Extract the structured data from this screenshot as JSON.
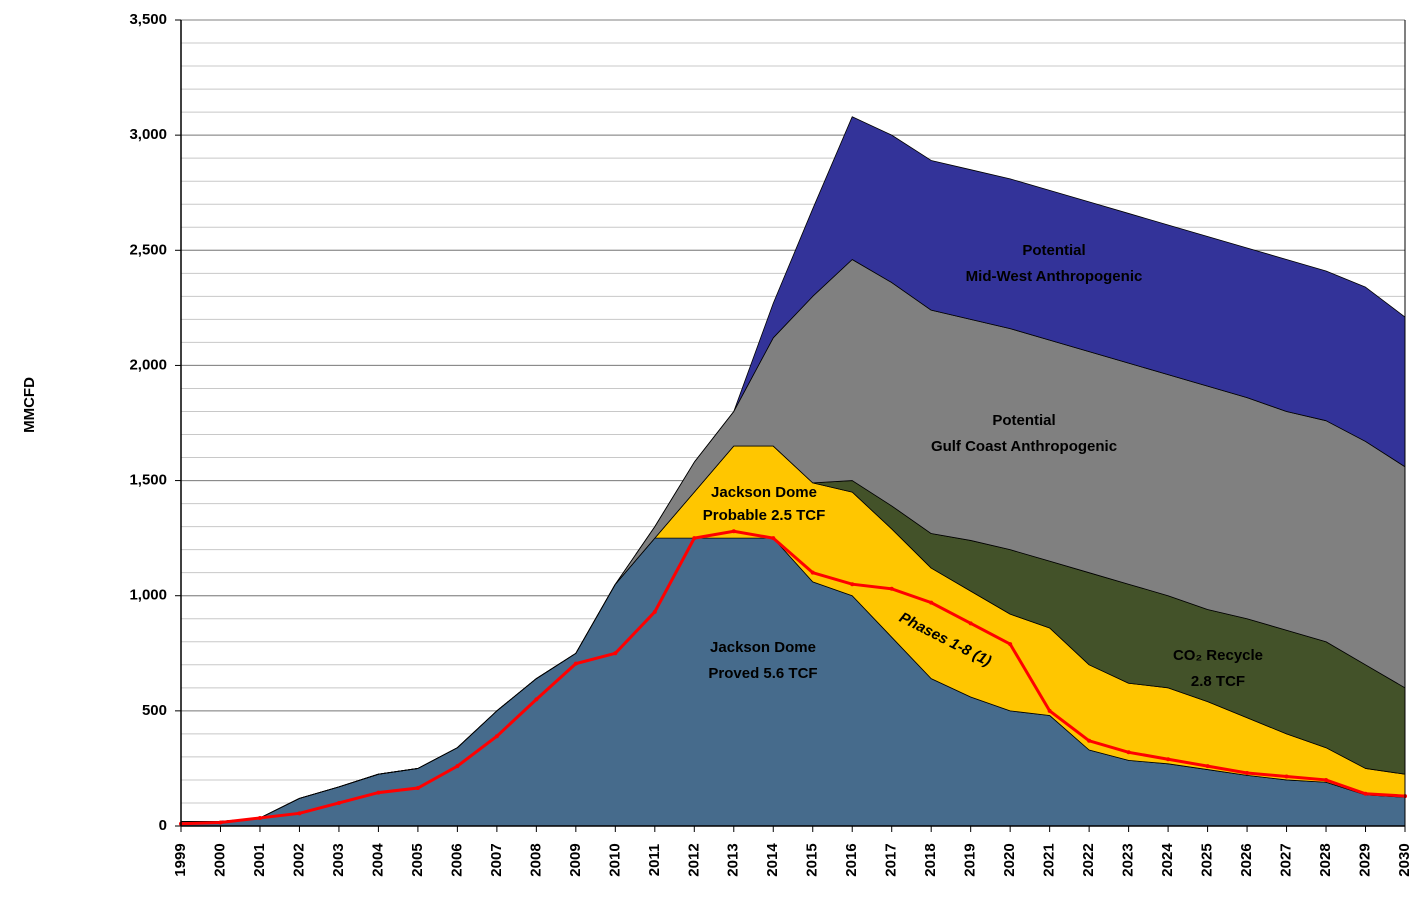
{
  "chart_data": {
    "type": "stacked_area",
    "y_label": "MMCFD",
    "categories": [
      "1999",
      "2000",
      "2001",
      "2002",
      "2003",
      "2004",
      "2005",
      "2006",
      "2007",
      "2008",
      "2009",
      "2010",
      "2011",
      "2012",
      "2013",
      "2014",
      "2015",
      "2016",
      "2017",
      "2018",
      "2019",
      "2020",
      "2021",
      "2022",
      "2023",
      "2024",
      "2025",
      "2026",
      "2027",
      "2028",
      "2029",
      "2030"
    ],
    "ylim": [
      0,
      3500
    ],
    "yticks": [
      0,
      500,
      {
        "value": 1000,
        "label": "1,000"
      },
      {
        "value": 1500,
        "label": "1,500"
      },
      {
        "value": 2000,
        "label": "2,000"
      },
      {
        "value": 2500,
        "label": "2,500"
      },
      {
        "value": 3000,
        "label": "3,000"
      },
      {
        "value": 3500,
        "label": "3,500"
      }
    ],
    "grid": true,
    "minor_grid_step": 100,
    "series": [
      {
        "label": [
          "Jackson Dome",
          "Proved 5.6 TCF"
        ],
        "color": "#466b8c",
        "label_color": "#ffffff",
        "values": [
          20,
          20,
          35,
          120,
          170,
          225,
          250,
          340,
          500,
          640,
          750,
          1050,
          1250,
          1250,
          1250,
          1250,
          1060,
          1000,
          820,
          640,
          560,
          500,
          480,
          330,
          285,
          270,
          245,
          220,
          200,
          190,
          135,
          125
        ]
      },
      {
        "label": [
          "Jackson Dome",
          "Probable 2.5 TCF"
        ],
        "color": "#ffc600",
        "label_color": "#000000",
        "values": [
          0,
          0,
          0,
          0,
          0,
          0,
          0,
          0,
          0,
          0,
          0,
          0,
          0,
          200,
          400,
          400,
          430,
          450,
          470,
          480,
          460,
          420,
          380,
          370,
          335,
          330,
          295,
          250,
          200,
          150,
          115,
          100
        ]
      },
      {
        "label": [
          "CO₂ Recycle",
          "2.8 TCF"
        ],
        "color": "#435229",
        "label_color": "#ffffff",
        "values": [
          0,
          0,
          0,
          0,
          0,
          0,
          0,
          0,
          0,
          0,
          0,
          0,
          0,
          0,
          0,
          0,
          0,
          50,
          100,
          150,
          220,
          280,
          290,
          400,
          430,
          400,
          400,
          430,
          450,
          460,
          450,
          375
        ]
      },
      {
        "label": [
          "Potential",
          "Gulf Coast Anthropogenic"
        ],
        "color": "#808080",
        "label_color": "#ffffff",
        "values": [
          0,
          0,
          0,
          0,
          0,
          0,
          0,
          0,
          0,
          0,
          0,
          0,
          50,
          130,
          150,
          470,
          810,
          960,
          970,
          970,
          960,
          960,
          960,
          960,
          960,
          960,
          970,
          960,
          950,
          960,
          970,
          960
        ]
      },
      {
        "label": [
          "Potential",
          "Mid-West Anthropogenic"
        ],
        "color": "#333399",
        "label_color": "#ffffff",
        "values": [
          0,
          0,
          0,
          0,
          0,
          0,
          0,
          0,
          0,
          0,
          0,
          0,
          0,
          0,
          0,
          150,
          380,
          620,
          640,
          650,
          650,
          650,
          650,
          650,
          650,
          650,
          650,
          650,
          660,
          650,
          670,
          650
        ]
      }
    ],
    "line": {
      "label": "Phases 1-8 (1)",
      "color": "#ff0000",
      "values": [
        10,
        15,
        35,
        55,
        100,
        145,
        165,
        260,
        390,
        550,
        705,
        750,
        930,
        1250,
        1280,
        1250,
        1100,
        1050,
        1030,
        970,
        880,
        790,
        500,
        370,
        320,
        290,
        260,
        230,
        215,
        200,
        140,
        130
      ]
    }
  }
}
